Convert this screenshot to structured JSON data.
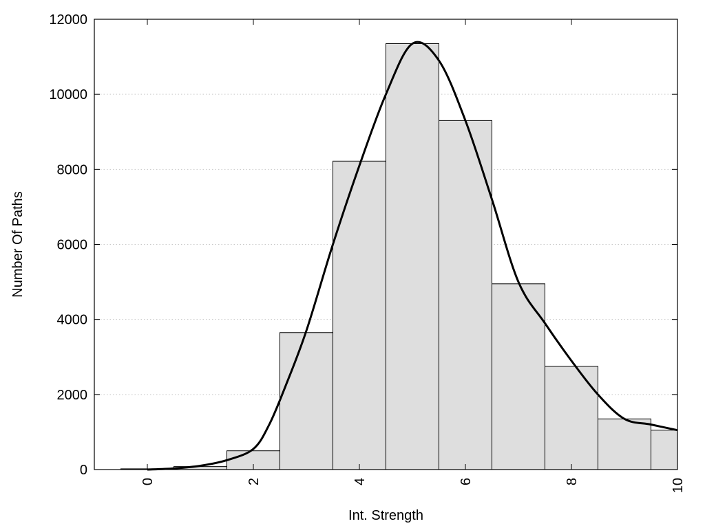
{
  "chart_data": {
    "type": "bar",
    "title": "",
    "xlabel": "Int. Strength",
    "ylabel": "Number Of Paths",
    "xlim": [
      -1,
      10
    ],
    "ylim": [
      0,
      12000
    ],
    "x_ticks": [
      0,
      2,
      4,
      6,
      8,
      10
    ],
    "y_ticks": [
      0,
      2000,
      4000,
      6000,
      8000,
      10000,
      12000
    ],
    "grid": "horizontal dotted",
    "bin_width": 1,
    "bars": [
      {
        "x": 0,
        "value": 20
      },
      {
        "x": 1,
        "value": 80
      },
      {
        "x": 2,
        "value": 500
      },
      {
        "x": 3,
        "value": 3650
      },
      {
        "x": 4,
        "value": 8220
      },
      {
        "x": 5,
        "value": 11350
      },
      {
        "x": 6,
        "value": 9300
      },
      {
        "x": 7,
        "value": 4950
      },
      {
        "x": 8,
        "value": 2750
      },
      {
        "x": 9,
        "value": 1350
      },
      {
        "x": 10,
        "value": 1050
      }
    ],
    "curve": {
      "type": "line",
      "points": [
        [
          0,
          0
        ],
        [
          0.5,
          30
        ],
        [
          1,
          100
        ],
        [
          1.5,
          250
        ],
        [
          2,
          550
        ],
        [
          2.3,
          1200
        ],
        [
          2.6,
          2200
        ],
        [
          3,
          3700
        ],
        [
          3.5,
          6000
        ],
        [
          4,
          8100
        ],
        [
          4.5,
          10000
        ],
        [
          5,
          11350
        ],
        [
          5.5,
          10900
        ],
        [
          6,
          9300
        ],
        [
          6.5,
          7200
        ],
        [
          7,
          5000
        ],
        [
          7.5,
          3900
        ],
        [
          8,
          2900
        ],
        [
          8.5,
          2000
        ],
        [
          9,
          1350
        ],
        [
          9.5,
          1200
        ],
        [
          10,
          1050
        ]
      ]
    },
    "colors": {
      "bar_fill": "#dedede",
      "bar_stroke": "#000000",
      "curve": "#000000",
      "grid": "#c8c8c8"
    }
  }
}
